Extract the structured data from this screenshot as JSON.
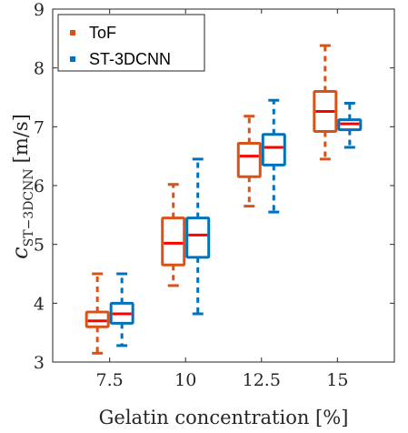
{
  "chart_data": {
    "type": "boxplot",
    "title": "",
    "xlabel": "Gelatin concentration [%]",
    "ylabel_main": "c",
    "ylabel_sub": "ST−3DCNN",
    "ylabel_unit": "[m/s]",
    "categories": [
      "7.5",
      "10",
      "12.5",
      "15"
    ],
    "ylim": [
      3,
      9
    ],
    "yticks": [
      "3",
      "4",
      "5",
      "6",
      "7",
      "8",
      "9"
    ],
    "grid": false,
    "legend_position": "top-left",
    "median_color": "#ff0000",
    "series": [
      {
        "name": "ToF",
        "color": "#d95319",
        "boxes": [
          {
            "whisker_low": 3.15,
            "q1": 3.6,
            "median": 3.7,
            "q3": 3.85,
            "whisker_high": 4.5
          },
          {
            "whisker_low": 4.3,
            "q1": 4.65,
            "median": 5.02,
            "q3": 5.45,
            "whisker_high": 6.02
          },
          {
            "whisker_low": 5.65,
            "q1": 6.15,
            "median": 6.5,
            "q3": 6.72,
            "whisker_high": 7.18
          },
          {
            "whisker_low": 6.45,
            "q1": 6.92,
            "median": 7.26,
            "q3": 7.6,
            "whisker_high": 8.38
          }
        ]
      },
      {
        "name": "ST-3DCNN",
        "color": "#0072bd",
        "boxes": [
          {
            "whisker_low": 3.28,
            "q1": 3.66,
            "median": 3.82,
            "q3": 4.0,
            "whisker_high": 4.5
          },
          {
            "whisker_low": 3.82,
            "q1": 4.78,
            "median": 5.16,
            "q3": 5.45,
            "whisker_high": 6.45
          },
          {
            "whisker_low": 5.55,
            "q1": 6.35,
            "median": 6.65,
            "q3": 6.87,
            "whisker_high": 7.45
          },
          {
            "whisker_low": 6.65,
            "q1": 6.95,
            "median": 7.05,
            "q3": 7.12,
            "whisker_high": 7.4
          }
        ]
      }
    ]
  }
}
